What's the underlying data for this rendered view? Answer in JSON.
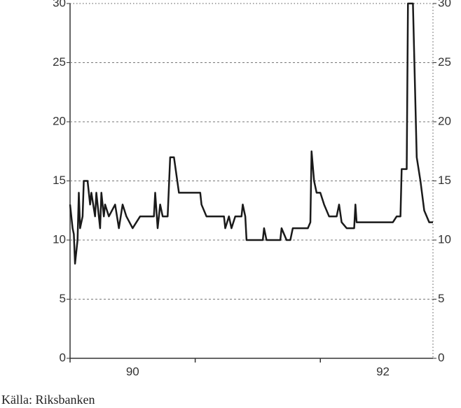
{
  "chart_data": {
    "type": "line",
    "source": "Källa: Riksbanken",
    "x": [
      1990.0,
      1990.02,
      1990.03,
      1990.04,
      1990.06,
      1990.07,
      1990.08,
      1990.1,
      1990.11,
      1990.14,
      1990.16,
      1990.17,
      1990.2,
      1990.21,
      1990.24,
      1990.25,
      1990.27,
      1990.28,
      1990.31,
      1990.36,
      1990.39,
      1990.42,
      1990.45,
      1990.5,
      1990.56,
      1990.67,
      1990.68,
      1990.7,
      1990.72,
      1990.74,
      1990.78,
      1990.8,
      1990.83,
      1990.87,
      1991.04,
      1991.05,
      1991.09,
      1991.23,
      1991.24,
      1991.27,
      1991.29,
      1991.32,
      1991.37,
      1991.38,
      1991.4,
      1991.41,
      1991.54,
      1991.55,
      1991.57,
      1991.68,
      1991.69,
      1991.73,
      1991.76,
      1991.78,
      1991.9,
      1991.92,
      1991.93,
      1991.95,
      1991.97,
      1992.0,
      1992.03,
      1992.07,
      1992.13,
      1992.15,
      1992.17,
      1992.21,
      1992.27,
      1992.28,
      1992.29,
      1992.58,
      1992.61,
      1992.64,
      1992.65,
      1992.69,
      1992.7,
      1992.74,
      1992.77,
      1992.8,
      1992.83,
      1992.87,
      1992.9
    ],
    "series": [
      {
        "color": "#1a1a1a",
        "values": [
          13,
          11,
          10.5,
          8,
          10,
          14,
          11,
          12,
          15,
          15,
          13,
          14,
          12,
          14,
          11,
          14,
          12,
          13,
          12,
          13,
          11,
          13,
          12,
          11,
          12,
          12,
          14,
          11,
          13,
          12,
          12,
          17,
          17,
          14,
          14,
          13,
          12,
          12,
          11,
          12,
          11,
          12,
          12,
          13,
          12,
          10,
          10,
          11,
          10,
          10,
          11,
          10,
          10,
          11,
          11,
          11.5,
          17.5,
          15,
          14,
          14,
          13,
          12,
          12,
          13,
          11.5,
          11,
          11,
          13,
          11.5,
          11.5,
          12,
          12,
          16,
          16,
          30,
          30,
          17,
          15,
          12.5,
          11.5,
          11.5
        ]
      }
    ],
    "xlim": [
      1990,
      1992.9
    ],
    "xticks": [
      {
        "value": 1990.5,
        "label": "90"
      },
      {
        "value": 1992.5,
        "label": "92"
      }
    ],
    "xtick_marks": [
      1990,
      1991,
      1992
    ],
    "ylim": [
      0,
      30
    ],
    "yticks": [
      0,
      5,
      10,
      15,
      20,
      25,
      30
    ],
    "y2lim": [
      0,
      30
    ],
    "y2ticks": [
      0,
      5,
      10,
      15,
      20,
      25,
      30
    ],
    "grid": true
  }
}
